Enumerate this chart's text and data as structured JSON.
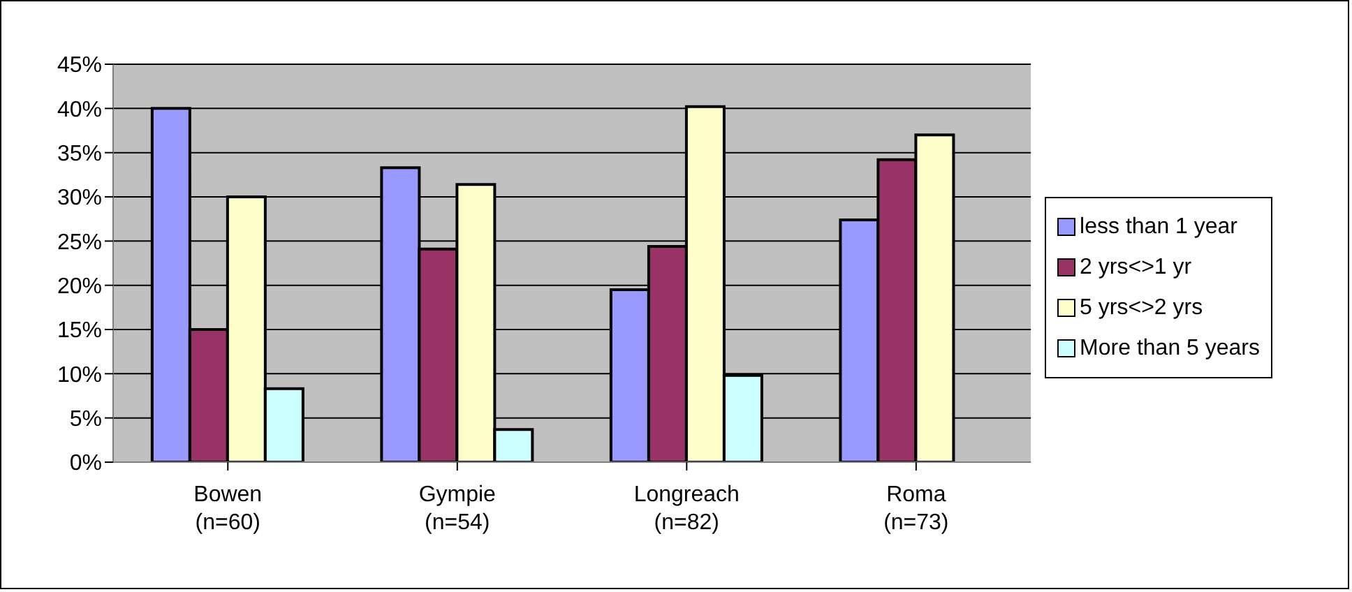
{
  "chart_data": {
    "type": "bar",
    "categories": [
      "Bowen\n(n=60)",
      "Gympie\n(n=54)",
      "Longreach\n(n=82)",
      "Roma\n(n=73)"
    ],
    "series": [
      {
        "name": "less than 1 year",
        "color": "#9999ff",
        "values": [
          40,
          33.3,
          19.5,
          27.4
        ]
      },
      {
        "name": "2 yrs<>1 yr",
        "color": "#993366",
        "values": [
          15,
          24.1,
          24.4,
          34.2
        ]
      },
      {
        "name": "5 yrs<>2 yrs",
        "color": "#ffffcc",
        "values": [
          30,
          31.4,
          40.2,
          37
        ]
      },
      {
        "name": "More than 5 years",
        "color": "#ccffff",
        "values": [
          8.3,
          3.7,
          9.8,
          null
        ]
      }
    ],
    "ylim": [
      0,
      45
    ],
    "yticks": [
      {
        "value": 0,
        "label": "0%"
      },
      {
        "value": 5,
        "label": "5%"
      },
      {
        "value": 10,
        "label": "10%"
      },
      {
        "value": 15,
        "label": "15%"
      },
      {
        "value": 20,
        "label": "20%"
      },
      {
        "value": 25,
        "label": "25%"
      },
      {
        "value": 30,
        "label": "30%"
      },
      {
        "value": 35,
        "label": "35%"
      },
      {
        "value": 40,
        "label": "40%"
      },
      {
        "value": 45,
        "label": "45%"
      }
    ],
    "grid": "y",
    "legend": "right"
  }
}
